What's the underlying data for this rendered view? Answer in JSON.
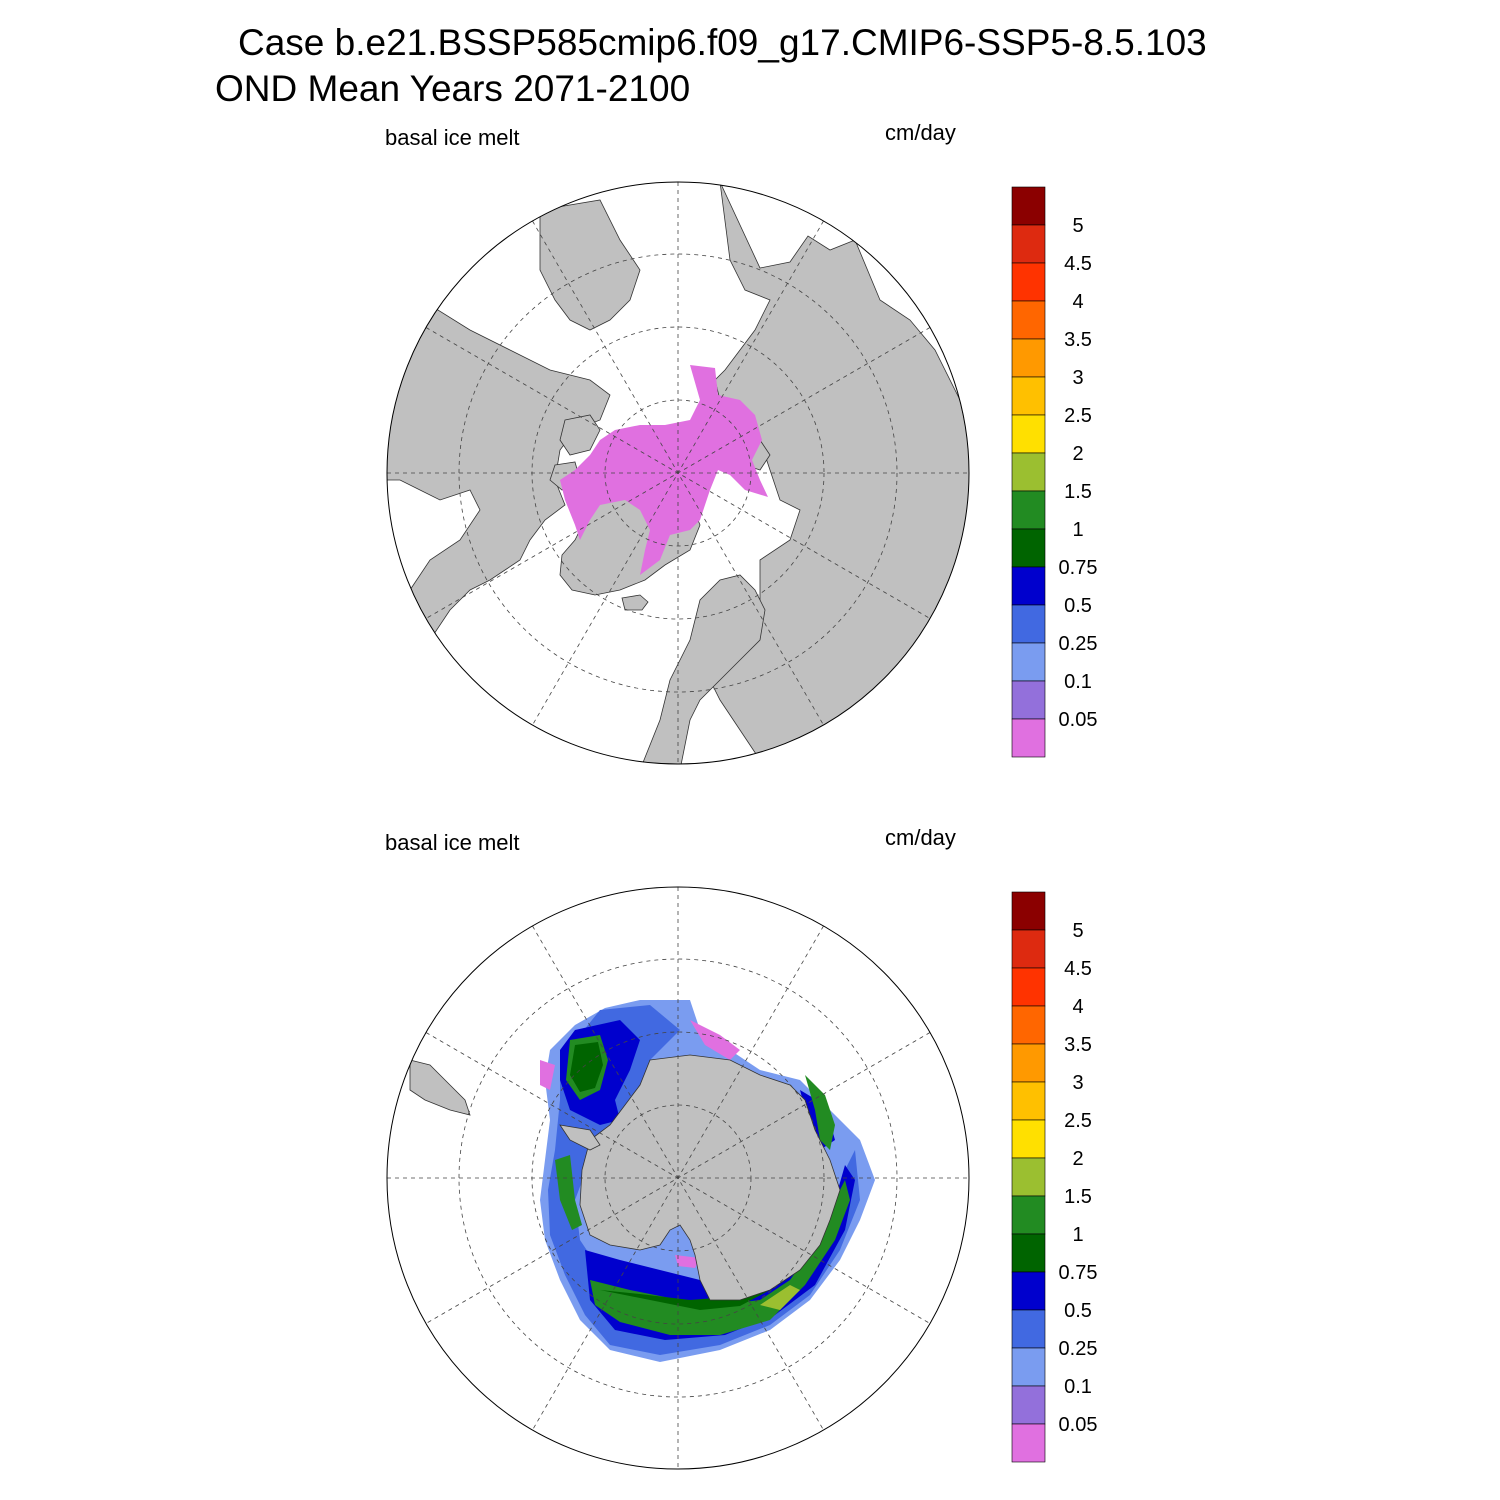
{
  "header": {
    "title_line1": "Case b.e21.BSSP585cmip6.f09_g17.CMIP6-SSP5-8.5.103",
    "title_line2": "OND Mean   Years 2071-2100"
  },
  "panels": [
    {
      "id": "north",
      "left_label": "basal ice melt",
      "right_label": "cm/day"
    },
    {
      "id": "south",
      "left_label": "basal ice melt",
      "right_label": "cm/day"
    }
  ],
  "colorbar": {
    "labels": [
      "5",
      "4.5",
      "4",
      "3.5",
      "3",
      "2.5",
      "2",
      "1.5",
      "1",
      "0.75",
      "0.5",
      "0.25",
      "0.1",
      "0.05"
    ],
    "colors": [
      "#8b0000",
      "#dd2a10",
      "#ff3300",
      "#ff6600",
      "#ff9900",
      "#ffc000",
      "#ffe000",
      "#9bbf30",
      "#228b22",
      "#006400",
      "#0000cd",
      "#4169e1",
      "#7a9cf0",
      "#9370db",
      "#e070e0"
    ]
  },
  "colors": {
    "land": "#c0c0c0",
    "ocean": "#ffffff"
  }
}
